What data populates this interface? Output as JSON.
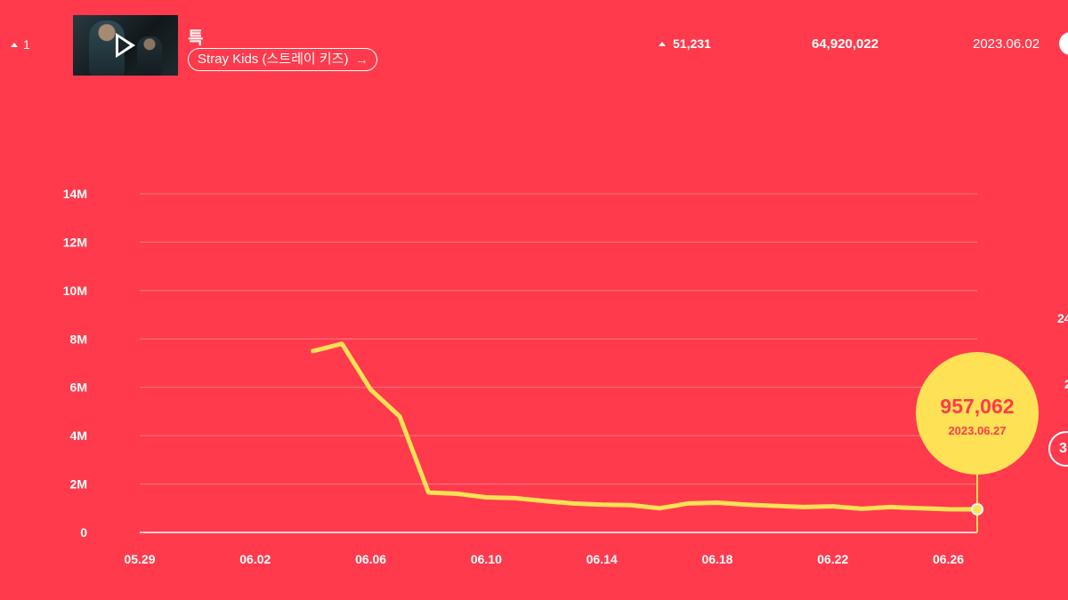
{
  "row": {
    "rank_change": "1",
    "song_title": "특",
    "artist": "Stray Kids (스트레이 키즈)",
    "artist_arrow": "→",
    "daily_change": "51,231",
    "total_views": "64,920,022",
    "release_date": "2023.06.02",
    "edge_text_1": "24",
    "edge_text_2": "2",
    "edge_circle_text": "3"
  },
  "colors": {
    "background": "#ff3a4c",
    "line": "#ffe155",
    "text": "#ffffff"
  },
  "callout": {
    "value": "957,062",
    "date": "2023.06.27"
  },
  "chart_data": {
    "type": "line",
    "title": "",
    "xlabel": "",
    "ylabel": "",
    "ylim": [
      0,
      14000000
    ],
    "y_ticks": [
      "0",
      "2M",
      "4M",
      "6M",
      "8M",
      "10M",
      "12M",
      "14M"
    ],
    "x_ticks": [
      "05.29",
      "06.02",
      "06.06",
      "06.10",
      "06.14",
      "06.18",
      "06.22",
      "06.26"
    ],
    "grid": true,
    "series": [
      {
        "x": [
          "06.04",
          "06.05",
          "06.06",
          "06.07",
          "06.08",
          "06.09",
          "06.10",
          "06.11",
          "06.12",
          "06.13",
          "06.14",
          "06.15",
          "06.16",
          "06.17",
          "06.18",
          "06.19",
          "06.20",
          "06.21",
          "06.22",
          "06.23",
          "06.24",
          "06.25",
          "06.26",
          "06.27"
        ],
        "values": [
          7500000,
          7800000,
          5900000,
          4800000,
          1650000,
          1600000,
          1450000,
          1420000,
          1300000,
          1200000,
          1150000,
          1130000,
          1000000,
          1200000,
          1230000,
          1150000,
          1100000,
          1050000,
          1080000,
          980000,
          1050000,
          1000000,
          960000,
          957062
        ]
      }
    ]
  }
}
